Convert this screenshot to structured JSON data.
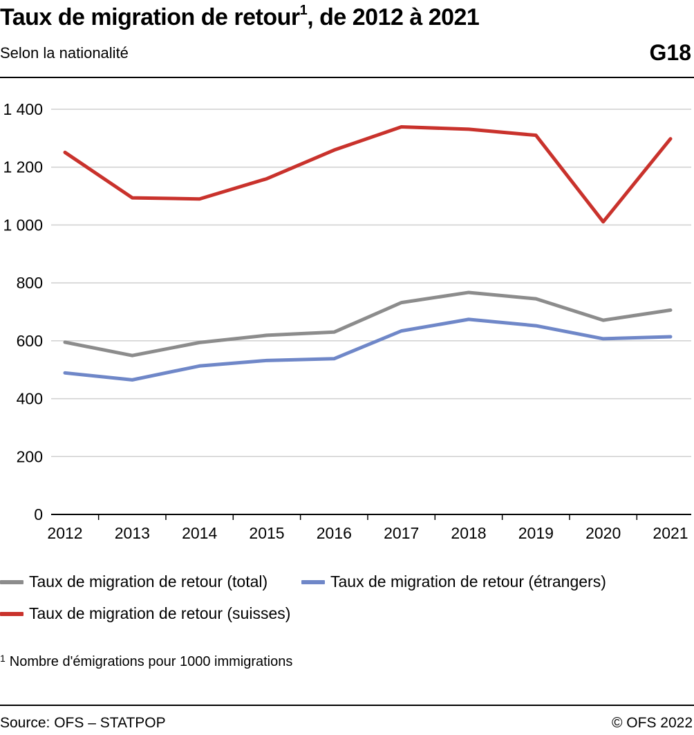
{
  "header": {
    "title": "Taux de migration de retour",
    "title_sup": "1",
    "title_suffix": ", de 2012 à 2021",
    "subtitle": "Selon la nationalité",
    "code": "G18"
  },
  "chart_data": {
    "type": "line",
    "x": [
      "2012",
      "2013",
      "2014",
      "2015",
      "2016",
      "2017",
      "2018",
      "2019",
      "2020",
      "2021"
    ],
    "ylim": [
      0,
      1400
    ],
    "yticks": [
      0,
      200,
      400,
      600,
      800,
      1000,
      1200,
      1400
    ],
    "ytick_labels": [
      "0",
      "200",
      "400",
      "600",
      "800",
      "1 000",
      "1 200",
      "1 400"
    ],
    "grid": true,
    "legend_position": "bottom",
    "series": [
      {
        "name": "Taux de migration de retour (total)",
        "color": "#8c8c8c",
        "values": [
          595,
          549,
          594,
          619,
          630,
          732,
          767,
          745,
          671,
          706
        ]
      },
      {
        "name": "Taux de migration de retour (étrangers)",
        "color": "#6f87c8",
        "values": [
          489,
          465,
          513,
          532,
          538,
          634,
          674,
          652,
          607,
          614
        ]
      },
      {
        "name": "Taux de migration de retour (suisses)",
        "color": "#c9322c",
        "values": [
          1251,
          1094,
          1090,
          1160,
          1259,
          1339,
          1331,
          1310,
          1011,
          1298
        ]
      }
    ]
  },
  "footnote": {
    "marker": "1",
    "text": "Nombre d'émigrations pour 1000 immigrations"
  },
  "footer": {
    "source": "Source: OFS – STATPOP",
    "copyright": "© OFS 2022"
  }
}
